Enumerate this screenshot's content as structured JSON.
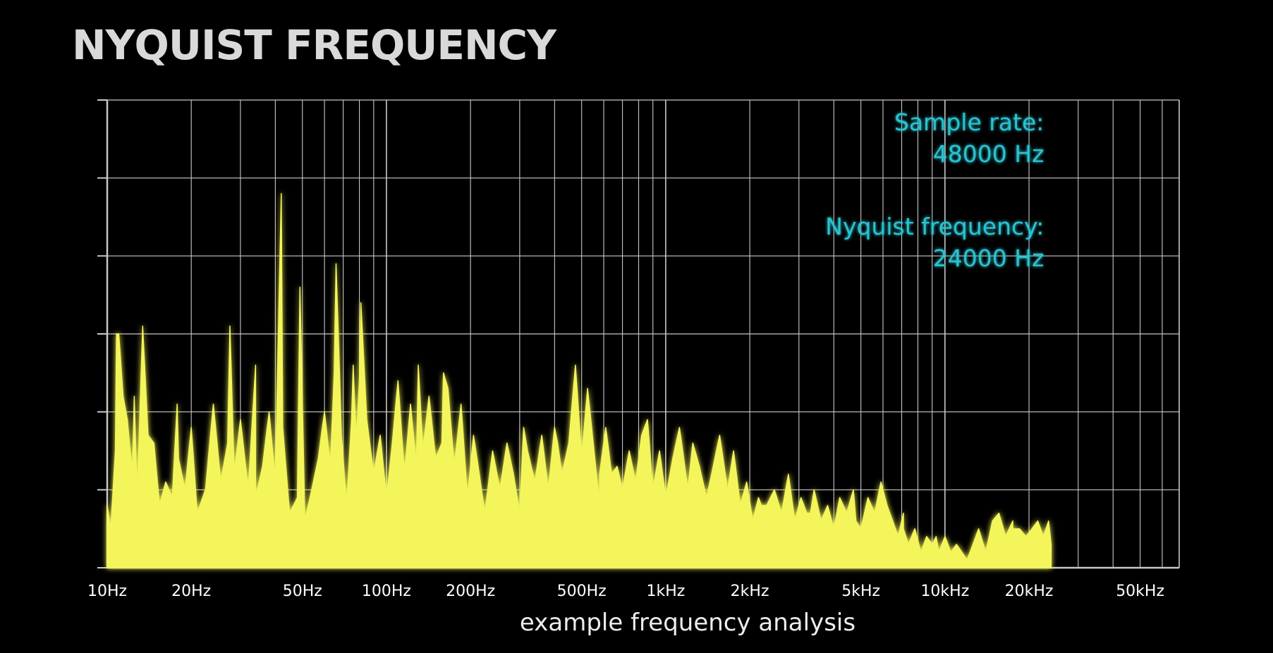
{
  "page": {
    "title": "NYQUIST FREQUENCY"
  },
  "chart_data": {
    "type": "area",
    "title": "NYQUIST FREQUENCY",
    "xlabel": "example frequency analysis",
    "ylabel": "",
    "xscale": "log",
    "xlim": [
      10,
      69000
    ],
    "ylim": [
      0,
      6
    ],
    "grid": true,
    "xticks": [
      {
        "value": 10,
        "label": "10Hz"
      },
      {
        "value": 20,
        "label": "20Hz"
      },
      {
        "value": 50,
        "label": "50Hz"
      },
      {
        "value": 100,
        "label": "100Hz"
      },
      {
        "value": 200,
        "label": "200Hz"
      },
      {
        "value": 500,
        "label": "500Hz"
      },
      {
        "value": 1000,
        "label": "1kHz"
      },
      {
        "value": 2000,
        "label": "2kHz"
      },
      {
        "value": 5000,
        "label": "5kHz"
      },
      {
        "value": 10000,
        "label": "10kHz"
      },
      {
        "value": 20000,
        "label": "20kHz"
      },
      {
        "value": 50000,
        "label": "50kHz"
      }
    ],
    "colors": {
      "spectrum": "#f4f55a",
      "nyquist": "#29c3d0",
      "grid": "#c8c8c8"
    },
    "series": [
      {
        "x": [
          10,
          10.3,
          10.7,
          11,
          11.4,
          11.8,
          12.3,
          12.8,
          13.4,
          14,
          14.7,
          15.4,
          16.2,
          17.1,
          18,
          19,
          20,
          21,
          22.5,
          24,
          25.5,
          27,
          28.5,
          30,
          32,
          34,
          36,
          38,
          40,
          42.5,
          45,
          48,
          51,
          54,
          57,
          60,
          63,
          66,
          69,
          72,
          75,
          78,
          81,
          85,
          90,
          95,
          100,
          105,
          110,
          116,
          122,
          128,
          135,
          142,
          150,
          158,
          166,
          175,
          185,
          195,
          205,
          215,
          225,
          240,
          255,
          270,
          285,
          300,
          320,
          340,
          360,
          380,
          400,
          425,
          450,
          475,
          500,
          525,
          550,
          580,
          610,
          640,
          670,
          700,
          740,
          780,
          820,
          860,
          900,
          950,
          1000,
          1060,
          1120,
          1180,
          1250,
          1320,
          1400,
          1480,
          1560,
          1650,
          1750,
          1850,
          1950,
          2050,
          2150,
          2300,
          2450,
          2600,
          2750,
          2900,
          3050,
          3200,
          3400,
          3600,
          3800,
          4000,
          4200,
          4450,
          4700,
          5000,
          5300,
          5600,
          5900,
          6200,
          6500,
          6800,
          7100,
          7400,
          7800,
          8200,
          8600,
          9000,
          9500,
          10000,
          10500,
          11000,
          11500,
          12000,
          12600,
          13200,
          14000,
          14800,
          15600,
          16500,
          17500,
          18500,
          19500,
          20500,
          21500,
          22500,
          23500,
          24000
        ],
        "y": [
          0.8,
          0.5,
          1.5,
          3.0,
          2.2,
          1.9,
          1.2,
          0.9,
          3.1,
          1.7,
          1.6,
          0.8,
          1.1,
          0.9,
          1.4,
          1.0,
          1.8,
          0.7,
          1.0,
          2.1,
          1.1,
          1.6,
          1.2,
          1.9,
          1.0,
          2.6,
          1.3,
          2.0,
          1.1,
          1.8,
          0.7,
          0.9,
          0.6,
          1.0,
          1.4,
          2.0,
          1.3,
          3.9,
          1.7,
          0.8,
          1.9,
          1.6,
          3.4,
          1.9,
          1.2,
          1.7,
          0.9,
          1.6,
          2.4,
          1.2,
          2.1,
          1.3,
          1.5,
          2.2,
          1.4,
          1.6,
          2.3,
          1.3,
          2.1,
          0.9,
          1.7,
          1.2,
          0.7,
          1.5,
          1.0,
          1.6,
          1.2,
          0.7,
          1.5,
          1.1,
          1.7,
          1.0,
          1.8,
          1.2,
          1.6,
          2.6,
          1.4,
          2.3,
          1.6,
          0.8,
          1.8,
          1.2,
          1.3,
          1.0,
          1.5,
          1.1,
          1.7,
          1.9,
          1.0,
          1.5,
          0.9,
          1.4,
          1.8,
          1.2,
          1.6,
          1.3,
          0.9,
          1.3,
          1.7,
          1.1,
          1.5,
          0.8,
          1.1,
          0.6,
          0.9,
          0.8,
          1.0,
          0.7,
          1.2,
          0.6,
          0.9,
          0.7,
          1.0,
          0.6,
          0.8,
          0.5,
          0.9,
          0.7,
          1.0,
          0.5,
          0.9,
          0.7,
          1.1,
          0.8,
          0.6,
          0.4,
          0.7,
          0.3,
          0.5,
          0.2,
          0.4,
          0.3,
          0.2,
          0.4,
          0.2,
          0.3,
          0.2,
          0.1,
          0.3,
          0.5,
          0.2,
          0.6,
          0.7,
          0.4,
          0.6,
          0.5,
          0.4,
          0.5,
          0.6,
          0.4,
          0.6,
          0.3
        ],
        "peaks": [
          [
            10.8,
            3.0
          ],
          [
            12.5,
            2.2
          ],
          [
            17.8,
            2.1
          ],
          [
            27.5,
            3.1
          ],
          [
            34,
            0.9
          ],
          [
            42,
            4.8
          ],
          [
            49,
            3.6
          ],
          [
            65,
            2.5
          ],
          [
            76,
            2.6
          ],
          [
            80,
            2.4
          ],
          [
            130,
            2.6
          ],
          [
            160,
            2.5
          ],
          [
            310,
            1.8
          ],
          [
            410,
            1.6
          ],
          [
            580,
            1.2
          ],
          [
            780,
            1.1
          ],
          [
            1200,
            1.0
          ],
          [
            1650,
            0.9
          ],
          [
            2200,
            0.8
          ],
          [
            3300,
            0.7
          ],
          [
            4800,
            0.6
          ],
          [
            7100,
            0.5
          ],
          [
            9300,
            0.4
          ],
          [
            17500,
            0.5
          ]
        ]
      }
    ],
    "annotations": [
      {
        "lines": [
          "Sample rate:",
          "48000 Hz"
        ]
      },
      {
        "lines": [
          "Nyquist frequency:",
          "24000 Hz"
        ]
      }
    ],
    "markers": [
      {
        "type": "vline",
        "x": 24000,
        "style": "dashed"
      }
    ]
  }
}
